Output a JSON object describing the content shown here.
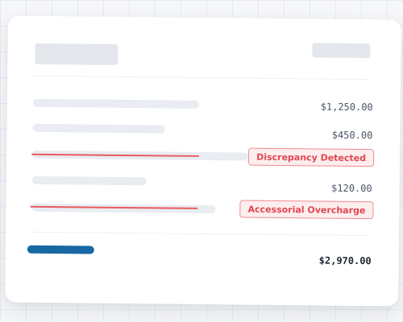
{
  "invoice": {
    "line_items": [
      {
        "amount": "$1,250.00"
      },
      {
        "amount": "$450.00"
      },
      {
        "flag": "Discrepancy Detected"
      },
      {
        "amount": "$120.00"
      },
      {
        "flag": "Accessorial Overcharge"
      }
    ],
    "total": "$2,970.00"
  },
  "colors": {
    "accent": "#1768a3",
    "flag_text": "#e04650",
    "flag_border": "#f08a8d",
    "flag_background": "#fdeeee",
    "strike_line": "#e85a5f",
    "skeleton": "#e9ecf1"
  }
}
